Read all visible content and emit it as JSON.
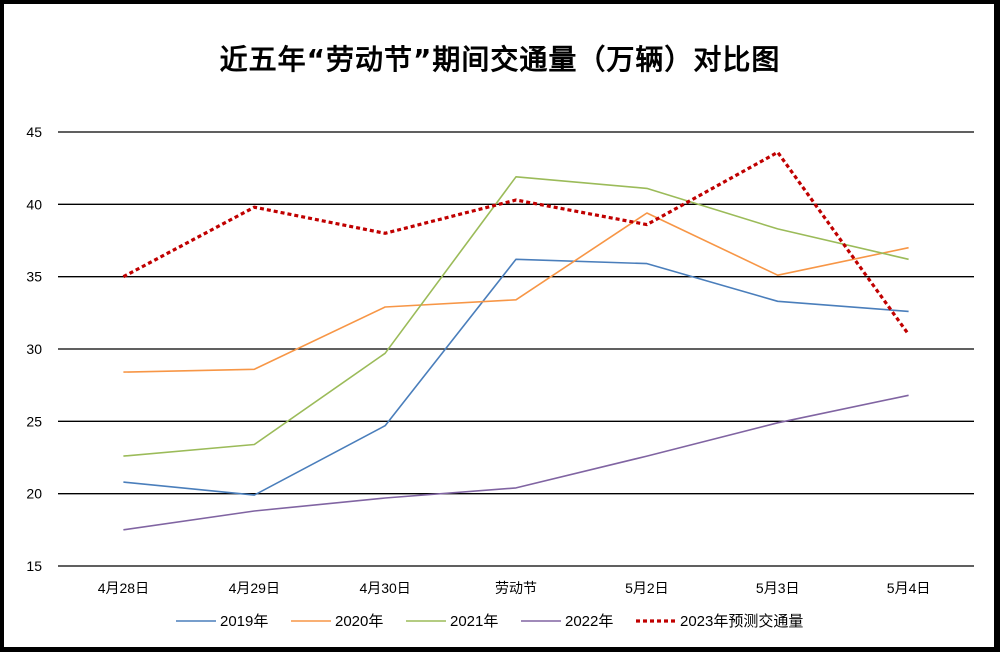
{
  "chart_data": {
    "type": "line",
    "title": "近五年“劳动节”期间交通量（万辆）对比图",
    "categories": [
      "4月28日",
      "4月29日",
      "4月30日",
      "劳动节",
      "5月2日",
      "5月3日",
      "5月4日"
    ],
    "ylim": [
      15,
      45
    ],
    "yticks": [
      15,
      20,
      25,
      30,
      35,
      40,
      45
    ],
    "grid": true,
    "legend_position": "bottom",
    "series": [
      {
        "name": "2019年",
        "color": "#4A7EBB",
        "dash": "solid",
        "values": [
          20.8,
          19.9,
          24.7,
          36.2,
          35.9,
          33.3,
          32.6
        ]
      },
      {
        "name": "2020年",
        "color": "#F79646",
        "dash": "solid",
        "values": [
          28.4,
          28.6,
          32.9,
          33.4,
          39.4,
          35.1,
          37.0
        ]
      },
      {
        "name": "2021年",
        "color": "#9BBB59",
        "dash": "solid",
        "values": [
          22.6,
          23.4,
          29.7,
          41.9,
          41.1,
          38.3,
          36.2
        ]
      },
      {
        "name": "2022年",
        "color": "#8064A2",
        "dash": "solid",
        "values": [
          17.5,
          18.8,
          19.7,
          20.4,
          22.6,
          24.9,
          26.8
        ]
      },
      {
        "name": "2023年预测交通量",
        "color": "#C00000",
        "dash": "dotted",
        "values": [
          35.0,
          39.8,
          38.0,
          40.3,
          38.6,
          43.6,
          31.0
        ]
      }
    ]
  }
}
